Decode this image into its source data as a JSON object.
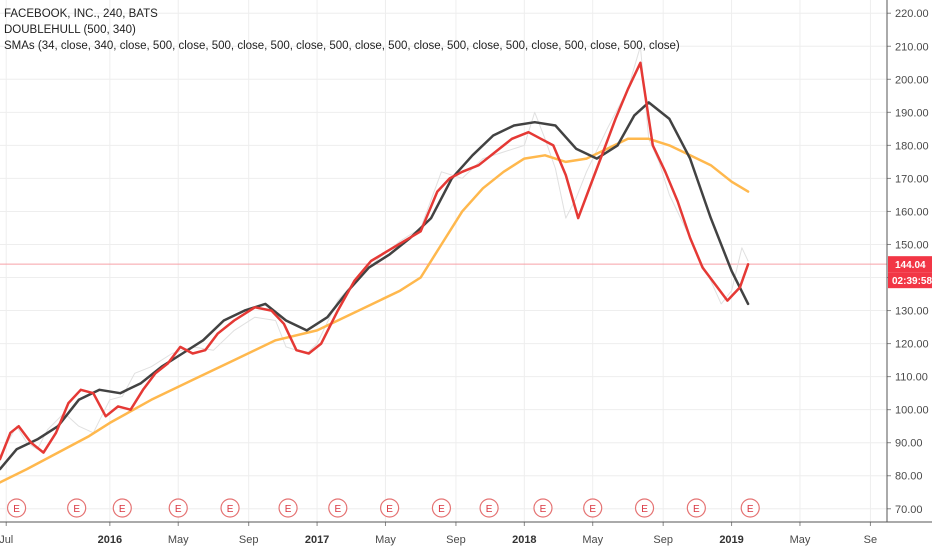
{
  "legend": {
    "symbol_line": "FACEBOOK, INC., 240, BATS",
    "indicator1": "DOUBLEHULL (500, 340)",
    "indicator2": "SMAs (34, close, 340, close, 500, close, 500, close, 500, close, 500, close, 500, close, 500, close, 500, close, 500, close, 500, close)"
  },
  "price_badge": {
    "value": "144.04",
    "countdown": "02:39:58",
    "color": "#f23645",
    "line_color": "#f7a1a6"
  },
  "earnings_marker": "E",
  "chart_data": {
    "type": "line",
    "ylim": [
      66,
      224
    ],
    "xlim": [
      2015.47,
      2019.75
    ],
    "y_ticks": [
      70,
      80,
      90,
      100,
      110,
      120,
      130,
      140,
      150,
      160,
      170,
      180,
      190,
      200,
      210,
      220
    ],
    "y_tick_labels": [
      "70.00",
      "80.00",
      "90.00",
      "100.00",
      "110.00",
      "120.00",
      "130.00",
      "140.00",
      "150.00",
      "160.00",
      "170.00",
      "180.00",
      "190.00",
      "200.00",
      "210.00",
      "220.00"
    ],
    "x_ticks": [
      {
        "x": 2015.5,
        "label": "Jul",
        "bold": false
      },
      {
        "x": 2016.0,
        "label": "2016",
        "bold": true
      },
      {
        "x": 2016.33,
        "label": "May",
        "bold": false
      },
      {
        "x": 2016.67,
        "label": "Sep",
        "bold": false
      },
      {
        "x": 2017.0,
        "label": "2017",
        "bold": true
      },
      {
        "x": 2017.33,
        "label": "May",
        "bold": false
      },
      {
        "x": 2017.67,
        "label": "Sep",
        "bold": false
      },
      {
        "x": 2018.0,
        "label": "2018",
        "bold": true
      },
      {
        "x": 2018.33,
        "label": "May",
        "bold": false
      },
      {
        "x": 2018.67,
        "label": "Sep",
        "bold": false
      },
      {
        "x": 2019.0,
        "label": "2019",
        "bold": true
      },
      {
        "x": 2019.33,
        "label": "May",
        "bold": false
      },
      {
        "x": 2019.67,
        "label": "Se",
        "bold": false
      }
    ],
    "grid": true,
    "current_price": 144.04,
    "earnings_x": [
      2015.55,
      2015.84,
      2016.06,
      2016.33,
      2016.58,
      2016.86,
      2017.1,
      2017.35,
      2017.6,
      2017.83,
      2018.09,
      2018.33,
      2018.58,
      2018.83,
      2019.09
    ],
    "series": [
      {
        "color": "#e0e0e0",
        "width": 1,
        "x": [
          2015.47,
          2015.55,
          2015.6,
          2015.65,
          2015.7,
          2015.78,
          2015.85,
          2015.92,
          2016.0,
          2016.06,
          2016.12,
          2016.2,
          2016.3,
          2016.4,
          2016.5,
          2016.6,
          2016.7,
          2016.8,
          2016.85,
          2016.95,
          2017.0,
          2017.1,
          2017.2,
          2017.3,
          2017.4,
          2017.5,
          2017.6,
          2017.7,
          2017.8,
          2017.9,
          2018.0,
          2018.05,
          2018.1,
          2018.15,
          2018.2,
          2018.25,
          2018.3,
          2018.4,
          2018.5,
          2018.56,
          2018.6,
          2018.65,
          2018.7,
          2018.8,
          2018.85,
          2018.9,
          2018.95,
          2019.0,
          2019.05,
          2019.08
        ],
        "y": [
          86,
          95,
          90,
          88,
          94,
          99,
          95,
          93,
          103,
          104,
          111,
          113,
          117,
          119,
          118,
          124,
          128,
          127,
          119,
          117,
          120,
          133,
          140,
          146,
          151,
          155,
          172,
          170,
          176,
          178,
          180,
          190,
          182,
          173,
          158,
          164,
          172,
          185,
          197,
          210,
          182,
          175,
          165,
          152,
          145,
          139,
          132,
          136,
          149,
          145
        ]
      },
      {
        "color": "#ffb84d",
        "width": 2.5,
        "x": [
          2015.47,
          2015.6,
          2015.75,
          2015.9,
          2016.0,
          2016.2,
          2016.4,
          2016.6,
          2016.8,
          2017.0,
          2017.2,
          2017.4,
          2017.5,
          2017.6,
          2017.7,
          2017.8,
          2017.9,
          2018.0,
          2018.1,
          2018.2,
          2018.3,
          2018.4,
          2018.5,
          2018.6,
          2018.7,
          2018.8,
          2018.9,
          2019.0,
          2019.08
        ],
        "y": [
          78,
          82,
          87,
          92,
          96,
          103,
          109,
          115,
          121,
          124,
          130,
          136,
          140,
          150,
          160,
          167,
          172,
          176,
          177,
          175,
          176,
          179,
          182,
          182,
          180,
          177,
          174,
          169,
          166
        ]
      },
      {
        "color": "#424242",
        "width": 2.5,
        "x": [
          2015.47,
          2015.55,
          2015.65,
          2015.75,
          2015.85,
          2015.95,
          2016.05,
          2016.15,
          2016.25,
          2016.35,
          2016.45,
          2016.55,
          2016.65,
          2016.75,
          2016.85,
          2016.95,
          2017.05,
          2017.15,
          2017.25,
          2017.35,
          2017.45,
          2017.55,
          2017.65,
          2017.75,
          2017.85,
          2017.95,
          2018.05,
          2018.15,
          2018.25,
          2018.35,
          2018.45,
          2018.53,
          2018.6,
          2018.7,
          2018.8,
          2018.9,
          2019.0,
          2019.08
        ],
        "y": [
          82,
          88,
          91,
          95,
          103,
          106,
          105,
          108,
          113,
          117,
          121,
          127,
          130,
          132,
          127,
          124,
          128,
          136,
          143,
          147,
          152,
          158,
          170,
          177,
          183,
          186,
          187,
          186,
          179,
          176,
          180,
          189,
          193,
          188,
          176,
          158,
          142,
          132
        ]
      },
      {
        "color": "#e53935",
        "width": 2.5,
        "x": [
          2015.47,
          2015.52,
          2015.56,
          2015.62,
          2015.68,
          2015.74,
          2015.8,
          2015.86,
          2015.92,
          2015.98,
          2016.04,
          2016.1,
          2016.16,
          2016.22,
          2016.28,
          2016.34,
          2016.4,
          2016.46,
          2016.52,
          2016.6,
          2016.7,
          2016.78,
          2016.84,
          2016.9,
          2016.96,
          2017.02,
          2017.1,
          2017.18,
          2017.26,
          2017.34,
          2017.42,
          2017.5,
          2017.58,
          2017.64,
          2017.7,
          2017.78,
          2017.86,
          2017.94,
          2018.02,
          2018.08,
          2018.14,
          2018.2,
          2018.26,
          2018.32,
          2018.38,
          2018.44,
          2018.5,
          2018.56,
          2018.62,
          2018.68,
          2018.74,
          2018.8,
          2018.86,
          2018.92,
          2018.98,
          2019.04,
          2019.08
        ],
        "y": [
          85,
          93,
          95,
          90,
          87,
          93,
          102,
          106,
          105,
          98,
          101,
          100,
          106,
          111,
          114,
          119,
          117,
          118,
          123,
          127,
          131,
          130,
          126,
          118,
          117,
          120,
          130,
          139,
          145,
          148,
          151,
          154,
          166,
          170,
          172,
          174,
          178,
          182,
          184,
          182,
          180,
          171,
          158,
          168,
          178,
          188,
          197,
          205,
          180,
          172,
          163,
          152,
          143,
          138,
          133,
          137,
          144
        ]
      }
    ]
  }
}
